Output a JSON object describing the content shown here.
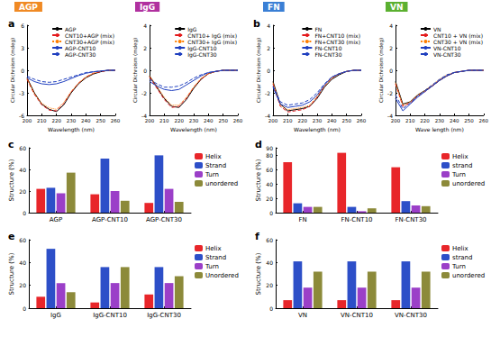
{
  "header": [
    {
      "text": "AGP",
      "color": "#f08a24"
    },
    {
      "text": "IgG",
      "color": "#b0309f"
    },
    {
      "text": "FN",
      "color": "#3a7fd5"
    },
    {
      "text": "VN",
      "color": "#5bb030"
    }
  ],
  "chart_data": [
    {
      "type": "line",
      "title": "a",
      "x_label": "Wavelength (nm)",
      "y_label": "Circular Dichroism (mdeg)",
      "x": [
        200,
        205,
        210,
        215,
        220,
        225,
        230,
        235,
        240,
        245,
        250,
        255,
        260
      ],
      "xlim": [
        200,
        260
      ],
      "xticks": [
        200,
        210,
        220,
        230,
        240,
        250,
        260
      ],
      "ylim": [
        -6,
        6
      ],
      "yticks": [
        -6,
        -3,
        0,
        3,
        6
      ],
      "grid": false,
      "legend": "upper right",
      "series": [
        {
          "name": "AGP",
          "color": "#000000",
          "line_style": "solid",
          "values": [
            -1.0,
            -3.0,
            -4.5,
            -5.2,
            -5.5,
            -4.6,
            -3.0,
            -1.8,
            -1.0,
            -0.5,
            -0.2,
            0,
            0
          ]
        },
        {
          "name": "CNT10+AGP (mix)",
          "color": "#e41a1c",
          "line_style": "dashed",
          "values": [
            -1.2,
            -3.2,
            -4.6,
            -5.3,
            -5.4,
            -4.4,
            -2.9,
            -1.7,
            -0.9,
            -0.4,
            -0.2,
            0,
            0
          ]
        },
        {
          "name": "CNT30+AGP (mix)",
          "color": "#ff7f00",
          "line_style": "dotted",
          "values": [
            -1.1,
            -3.1,
            -4.4,
            -5.0,
            -5.2,
            -4.3,
            -2.8,
            -1.7,
            -0.9,
            -0.4,
            -0.1,
            0,
            0
          ]
        },
        {
          "name": "AGP-CNT10",
          "color": "#1f3fbf",
          "line_style": "solid",
          "values": [
            -1.0,
            -1.5,
            -1.8,
            -1.9,
            -1.8,
            -1.5,
            -1.1,
            -0.7,
            -0.4,
            -0.2,
            -0.1,
            0,
            0
          ]
        },
        {
          "name": "AGP-CNT30",
          "color": "#1f3fbf",
          "line_style": "dashed",
          "values": [
            -0.8,
            -1.2,
            -1.5,
            -1.6,
            -1.5,
            -1.2,
            -0.9,
            -0.6,
            -0.3,
            -0.2,
            -0.1,
            0,
            0
          ]
        }
      ]
    },
    {
      "type": "line",
      "x_label": "Wavelength (nm)",
      "y_label": "Circular Dichroism (mdeg)",
      "x": [
        200,
        205,
        210,
        215,
        220,
        225,
        230,
        235,
        240,
        245,
        250,
        255,
        260
      ],
      "xlim": [
        200,
        260
      ],
      "xticks": [
        200,
        210,
        220,
        230,
        240,
        250,
        260
      ],
      "ylim": [
        -4,
        4
      ],
      "yticks": [
        -4,
        -2,
        0,
        2,
        4
      ],
      "grid": false,
      "legend": "upper right",
      "series": [
        {
          "name": "IgG",
          "color": "#000000",
          "line_style": "solid",
          "values": [
            -0.5,
            -1.5,
            -2.5,
            -3.2,
            -3.3,
            -2.6,
            -1.6,
            -0.8,
            -0.3,
            -0.1,
            0,
            0,
            0
          ]
        },
        {
          "name": "CNT10+ IgG (mix)",
          "color": "#e41a1c",
          "line_style": "dashed",
          "values": [
            -0.6,
            -1.6,
            -2.6,
            -3.3,
            -3.2,
            -2.5,
            -1.5,
            -0.8,
            -0.3,
            -0.1,
            0,
            0,
            0
          ]
        },
        {
          "name": "CNT30+ IgG (mix)",
          "color": "#ff7f00",
          "line_style": "dotted",
          "values": [
            -0.5,
            -1.4,
            -2.4,
            -3.1,
            -3.1,
            -2.4,
            -1.5,
            -0.7,
            -0.3,
            -0.1,
            0,
            0,
            0
          ]
        },
        {
          "name": "IgG-CNT10",
          "color": "#1f3fbf",
          "line_style": "solid",
          "values": [
            -1.0,
            -1.4,
            -1.7,
            -1.8,
            -1.7,
            -1.3,
            -0.9,
            -0.5,
            -0.2,
            -0.1,
            0,
            0,
            0
          ]
        },
        {
          "name": "IgG-CNT30",
          "color": "#1f3fbf",
          "line_style": "dashed",
          "values": [
            -0.8,
            -1.2,
            -1.5,
            -1.5,
            -1.4,
            -1.1,
            -0.7,
            -0.4,
            -0.2,
            -0.1,
            0,
            0,
            0
          ]
        }
      ]
    },
    {
      "type": "line",
      "title": "b",
      "x_label": "Wavelength (nm)",
      "y_label": "Circular Dichroism (mdeg)",
      "x": [
        200,
        205,
        210,
        215,
        220,
        225,
        230,
        235,
        240,
        245,
        250,
        255,
        260
      ],
      "xlim": [
        200,
        260
      ],
      "xticks": [
        200,
        210,
        220,
        230,
        240,
        250,
        260
      ],
      "ylim": [
        -4,
        4
      ],
      "yticks": [
        -4,
        -2,
        0,
        2,
        4
      ],
      "grid": false,
      "legend": "upper right",
      "series": [
        {
          "name": "FN",
          "color": "#000000",
          "line_style": "solid",
          "values": [
            -1.0,
            -3.0,
            -3.6,
            -3.5,
            -3.4,
            -3.2,
            -2.5,
            -1.5,
            -0.8,
            -0.4,
            -0.1,
            0,
            0
          ]
        },
        {
          "name": "FN+CNT10 (mix)",
          "color": "#e41a1c",
          "line_style": "dashed",
          "values": [
            -1.2,
            -3.2,
            -3.7,
            -3.6,
            -3.5,
            -3.2,
            -2.4,
            -1.4,
            -0.7,
            -0.3,
            -0.1,
            0,
            0
          ]
        },
        {
          "name": "FN+CNT30 (mix)",
          "color": "#ff7f00",
          "line_style": "dotted",
          "values": [
            -1.1,
            -3.1,
            -3.5,
            -3.4,
            -3.3,
            -3.1,
            -2.3,
            -1.4,
            -0.7,
            -0.3,
            -0.1,
            0,
            0
          ]
        },
        {
          "name": "FN-CNT10",
          "color": "#1f3fbf",
          "line_style": "solid",
          "values": [
            -1.5,
            -3.0,
            -3.3,
            -3.2,
            -3.1,
            -2.8,
            -2.2,
            -1.3,
            -0.6,
            -0.3,
            -0.1,
            0,
            0
          ]
        },
        {
          "name": "FN-CNT30",
          "color": "#1f3fbf",
          "line_style": "dashed",
          "values": [
            -1.4,
            -2.8,
            -3.1,
            -3.0,
            -2.9,
            -2.6,
            -2.0,
            -1.2,
            -0.6,
            -0.3,
            -0.1,
            0,
            0
          ]
        }
      ]
    },
    {
      "type": "line",
      "x_label": "Wave length (nm)",
      "y_label": "Circular Dichroism (mdeg)",
      "x": [
        200,
        205,
        210,
        215,
        220,
        225,
        230,
        235,
        240,
        245,
        250,
        255,
        260
      ],
      "xlim": [
        200,
        260
      ],
      "xticks": [
        200,
        210,
        220,
        230,
        240,
        250,
        260
      ],
      "ylim": [
        -4,
        4
      ],
      "yticks": [
        -4,
        -2,
        0,
        2,
        4
      ],
      "grid": false,
      "legend": "upper right",
      "series": [
        {
          "name": "VN",
          "color": "#000000",
          "line_style": "solid",
          "values": [
            -1.0,
            -3.0,
            -2.8,
            -2.2,
            -1.8,
            -1.4,
            -0.9,
            -0.5,
            -0.2,
            -0.1,
            0,
            0,
            0
          ]
        },
        {
          "name": "CNT10 + VN (mix)",
          "color": "#e41a1c",
          "line_style": "dashed",
          "values": [
            -1.2,
            -3.2,
            -2.9,
            -2.3,
            -1.9,
            -1.4,
            -0.9,
            -0.5,
            -0.2,
            -0.1,
            0,
            0,
            0
          ]
        },
        {
          "name": "CNT30 + VN (mix)",
          "color": "#ff7f00",
          "line_style": "dotted",
          "values": [
            -1.1,
            -3.1,
            -2.8,
            -2.2,
            -1.8,
            -1.3,
            -0.8,
            -0.4,
            -0.2,
            -0.1,
            0,
            0,
            0
          ]
        },
        {
          "name": "VN-CNT10",
          "color": "#1f3fbf",
          "line_style": "solid",
          "values": [
            -2.5,
            -3.6,
            -3.0,
            -2.4,
            -1.9,
            -1.4,
            -0.9,
            -0.5,
            -0.2,
            -0.1,
            0,
            0,
            0
          ]
        },
        {
          "name": "VN-CNT30",
          "color": "#1f3fbf",
          "line_style": "dashed",
          "values": [
            -2.2,
            -3.4,
            -2.9,
            -2.3,
            -1.8,
            -1.3,
            -0.8,
            -0.4,
            -0.2,
            -0.1,
            0,
            0,
            0
          ]
        }
      ]
    },
    {
      "type": "bar",
      "title": "c",
      "y_label": "Structure (%)",
      "categories": [
        "AGP",
        "AGP-CNT10",
        "AGP-CNT30"
      ],
      "ylim": [
        0,
        60
      ],
      "yticks": [
        0,
        20,
        40,
        60
      ],
      "grid": false,
      "legend": "right",
      "series": [
        {
          "name": "Helix",
          "color": "#e8262a",
          "values": [
            22,
            17,
            9
          ]
        },
        {
          "name": "Strand",
          "color": "#2d4fc8",
          "values": [
            23,
            50,
            53
          ]
        },
        {
          "name": "Turn",
          "color": "#9b3fc8",
          "values": [
            18,
            20,
            22
          ]
        },
        {
          "name": "unordered",
          "color": "#8c8a3a",
          "values": [
            37,
            11,
            10
          ]
        }
      ]
    },
    {
      "type": "bar",
      "title": "d",
      "y_label": "Structure (%)",
      "categories": [
        "FN",
        "FN-CNT10",
        "FN-CNT30"
      ],
      "ylim": [
        0,
        90
      ],
      "yticks": [
        0,
        20,
        40,
        60,
        80
      ],
      "grid": false,
      "legend": "right",
      "series": [
        {
          "name": "Helix",
          "color": "#e8262a",
          "values": [
            70,
            83,
            63
          ]
        },
        {
          "name": "strand",
          "color": "#2d4fc8",
          "values": [
            13,
            8,
            16
          ]
        },
        {
          "name": "Turn",
          "color": "#9b3fc8",
          "values": [
            8,
            2,
            10
          ]
        },
        {
          "name": "unordered",
          "color": "#8c8a3a",
          "values": [
            8,
            6,
            9
          ]
        }
      ]
    },
    {
      "type": "bar",
      "title": "e",
      "y_label": "Structure (%)",
      "categories": [
        "IgG",
        "IgG-CNT10",
        "IgG-CNT30"
      ],
      "ylim": [
        0,
        60
      ],
      "yticks": [
        0,
        20,
        40,
        60
      ],
      "grid": false,
      "legend": "right",
      "series": [
        {
          "name": "Helix",
          "color": "#e8262a",
          "values": [
            10,
            5,
            12
          ]
        },
        {
          "name": "Strand",
          "color": "#2d4fc8",
          "values": [
            52,
            36,
            36
          ]
        },
        {
          "name": "Turn",
          "color": "#9b3fc8",
          "values": [
            22,
            22,
            22
          ]
        },
        {
          "name": "Unordered",
          "color": "#8c8a3a",
          "values": [
            14,
            36,
            28
          ]
        }
      ]
    },
    {
      "type": "bar",
      "title": "f",
      "y_label": "Structure (%)",
      "categories": [
        "VN",
        "VN-CNT10",
        "VN-CNT30"
      ],
      "ylim": [
        0,
        60
      ],
      "yticks": [
        0,
        20,
        40,
        60
      ],
      "grid": false,
      "legend": "right",
      "series": [
        {
          "name": "Helix",
          "color": "#e8262a",
          "values": [
            7,
            7,
            7
          ]
        },
        {
          "name": "strand",
          "color": "#2d4fc8",
          "values": [
            41,
            41,
            41
          ]
        },
        {
          "name": "Turn",
          "color": "#9b3fc8",
          "values": [
            18,
            18,
            18
          ]
        },
        {
          "name": "unordered",
          "color": "#8c8a3a",
          "values": [
            32,
            32,
            32
          ]
        }
      ]
    }
  ]
}
